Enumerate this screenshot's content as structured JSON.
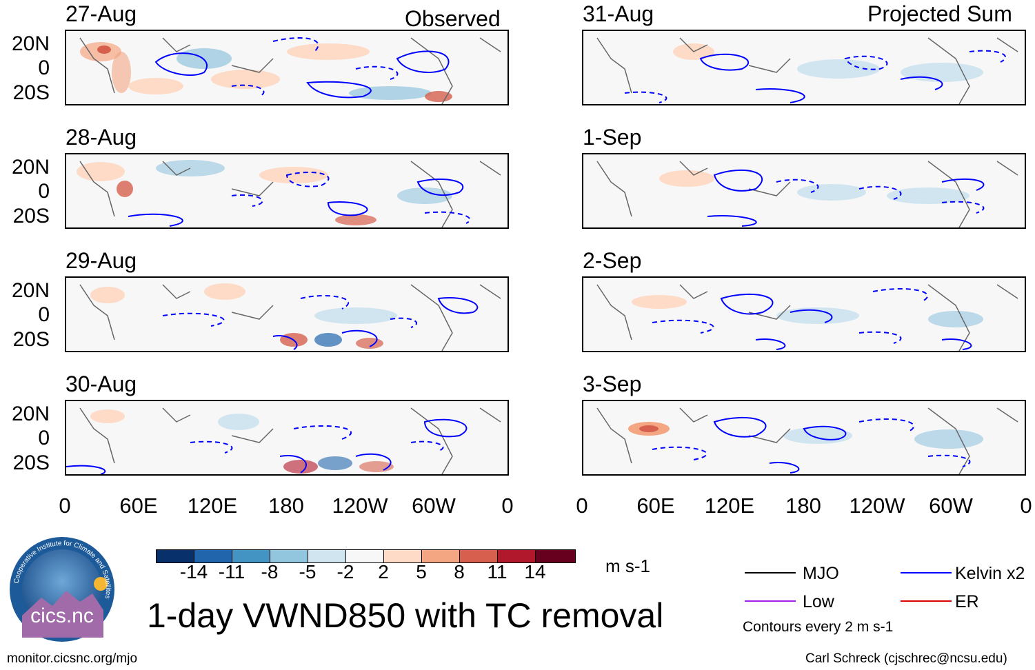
{
  "figure": {
    "title": "1-day VWND850 with TC removal",
    "left_column_title": "Observed",
    "right_column_title": "Projected Sum",
    "units": "m s-1",
    "contour_note": "Contours every 2 m s-1",
    "source_url": "monitor.cicsnc.org/mjo",
    "credit": "Carl Schreck (cjschrec@ncsu.edu)",
    "logo_text": "cics.nc",
    "logo_ring_text": "Cooperative Institute for Climate and Satellites"
  },
  "chart_data": {
    "type": "heatmap",
    "variable": "850-hPa meridional wind anomaly",
    "panels_observed": [
      "27-Aug",
      "28-Aug",
      "29-Aug",
      "30-Aug"
    ],
    "panels_projected": [
      "31-Aug",
      "1-Sep",
      "2-Sep",
      "3-Sep"
    ],
    "latitude_ticks": [
      "20N",
      "0",
      "20S"
    ],
    "longitude_ticks": [
      "0",
      "60E",
      "120E",
      "180",
      "120W",
      "60W",
      "0"
    ],
    "colorbar": {
      "ticks": [
        "-14",
        "-11",
        "-8",
        "-5",
        "-2",
        "2",
        "5",
        "8",
        "11",
        "14"
      ],
      "colors": [
        "#08306b",
        "#2166ac",
        "#4393c3",
        "#92c5de",
        "#d1e5f0",
        "#f7f7f7",
        "#fddbc7",
        "#f4a582",
        "#d6604d",
        "#b2182b",
        "#67001f"
      ]
    },
    "legend": [
      {
        "name": "MJO",
        "color": "#000000"
      },
      {
        "name": "Kelvin x2",
        "color": "#0000ff"
      },
      {
        "name": "Low",
        "color": "#a020f0"
      },
      {
        "name": "ER",
        "color": "#dd0000"
      }
    ]
  }
}
